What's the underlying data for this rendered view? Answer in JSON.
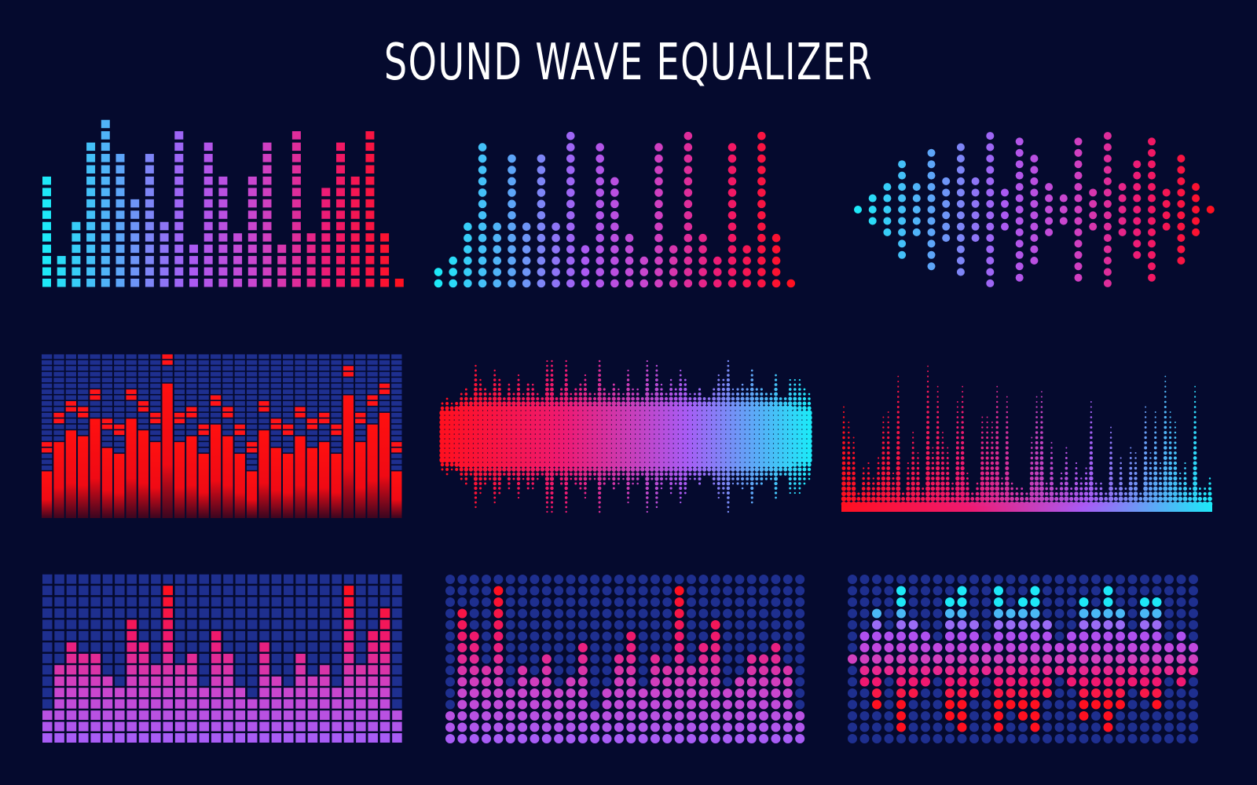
{
  "title": "SOUND WAVE EQUALIZER",
  "colors": {
    "background": "#050a2e",
    "cyan": "#1ee8f8",
    "blue": "#5aa8f8",
    "violet": "#a85cf5",
    "magenta": "#cc44cc",
    "pink": "#ee1a72",
    "red": "#ff1020",
    "grid_off": "#1e2f8f"
  },
  "equalizers": {
    "square_bars": {
      "levels": [
        10,
        3,
        6,
        13,
        15,
        12,
        8,
        12,
        6,
        14,
        4,
        13,
        10,
        5,
        10,
        13,
        4,
        14,
        5,
        9,
        13,
        10,
        14,
        5,
        1
      ]
    },
    "dot_bars": {
      "levels": [
        2,
        3,
        6,
        13,
        6,
        12,
        6,
        12,
        6,
        14,
        4,
        13,
        10,
        5,
        3,
        13,
        4,
        14,
        5,
        3,
        13,
        4,
        14,
        5,
        1
      ]
    },
    "dot_wave": {
      "dot_counts": [
        1,
        3,
        5,
        9,
        5,
        11,
        6,
        12,
        6,
        14,
        4,
        13,
        10,
        5,
        3,
        13,
        4,
        14,
        5,
        9,
        13,
        4,
        10,
        5,
        1
      ]
    },
    "segment_meter": {
      "rows": 28,
      "bars": [
        8,
        13,
        15,
        14,
        17,
        12,
        11,
        17,
        15,
        13,
        23,
        13,
        14,
        11,
        16,
        14,
        11,
        8,
        15,
        12,
        11,
        14,
        12,
        13,
        11,
        21,
        13,
        16,
        18,
        8
      ]
    },
    "halftone_wave": {
      "gradient": [
        "#ff1020",
        "#ee1a72",
        "#a85cf5",
        "#1ee8f8"
      ]
    },
    "halftone_spikes": {
      "gradient": [
        "#ff1020",
        "#ee1a72",
        "#a85cf5",
        "#1ee8f8"
      ]
    },
    "square_grid": {
      "rows": 15,
      "levels": [
        3,
        7,
        9,
        8,
        8,
        6,
        5,
        11,
        9,
        7,
        14,
        7,
        8,
        5,
        10,
        8,
        5,
        4,
        9,
        6,
        5,
        8,
        6,
        7,
        5,
        14,
        7,
        10,
        12,
        3
      ]
    },
    "dot_grid": {
      "rows": 15,
      "levels": [
        3,
        12,
        10,
        7,
        14,
        5,
        7,
        6,
        8,
        5,
        6,
        9,
        3,
        5,
        8,
        10,
        5,
        8,
        7,
        14,
        7,
        9,
        11,
        5,
        6,
        8,
        8,
        9,
        7,
        3
      ]
    },
    "symmetric_dot_grid": {
      "rows": 15,
      "spans": [
        [
          7,
          7
        ],
        [
          5,
          9
        ],
        [
          3,
          11
        ],
        [
          5,
          8
        ],
        [
          1,
          13
        ],
        [
          4,
          10
        ],
        [
          5,
          9
        ],
        [
          6,
          8
        ],
        [
          2,
          12
        ],
        [
          1,
          13
        ],
        [
          4,
          10
        ],
        [
          6,
          8
        ],
        [
          1,
          13
        ],
        [
          3,
          11
        ],
        [
          2,
          12
        ],
        [
          1,
          13
        ],
        [
          4,
          10
        ],
        [
          6,
          8
        ],
        [
          5,
          9
        ],
        [
          2,
          12
        ],
        [
          3,
          11
        ],
        [
          1,
          13
        ],
        [
          3,
          11
        ],
        [
          5,
          9
        ],
        [
          2,
          10
        ],
        [
          2,
          11
        ],
        [
          6,
          8
        ],
        [
          5,
          9
        ],
        [
          6,
          8
        ]
      ]
    }
  }
}
